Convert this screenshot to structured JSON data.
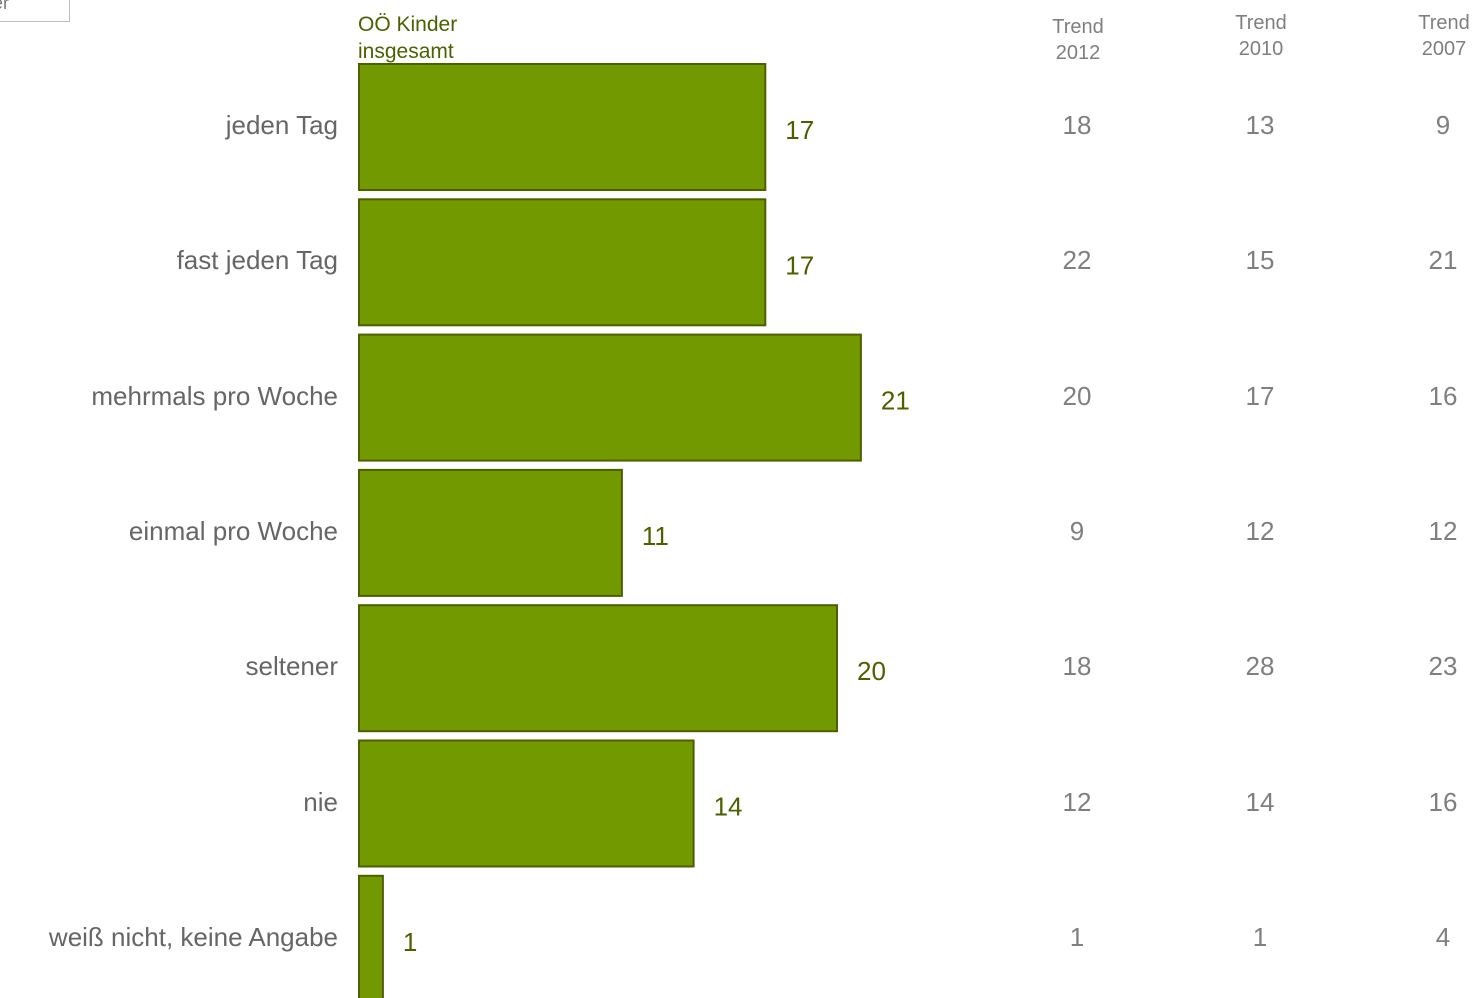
{
  "corner_label": "er",
  "chart_data": {
    "type": "bar",
    "orientation": "horizontal",
    "series_label": "OÖ Kinder\ninsgesamt",
    "categories": [
      "jeden Tag",
      "fast jeden Tag",
      "mehrmals pro Woche",
      "einmal pro Woche",
      "seltener",
      "nie",
      "weiß nicht, keine Angabe"
    ],
    "values": [
      17,
      17,
      21,
      11,
      20,
      14,
      1
    ],
    "bar_color": "#739900",
    "bar_border_color": "#4d6000",
    "value_label_color": "#4d6000",
    "trend_headers": [
      "Trend\n2012",
      "Trend\n2010",
      "Trend\n2007"
    ],
    "trend_values": [
      [
        18,
        13,
        9
      ],
      [
        22,
        15,
        21
      ],
      [
        20,
        17,
        16
      ],
      [
        9,
        12,
        12
      ],
      [
        18,
        28,
        23
      ],
      [
        12,
        14,
        16
      ],
      [
        1,
        1,
        4
      ]
    ]
  }
}
